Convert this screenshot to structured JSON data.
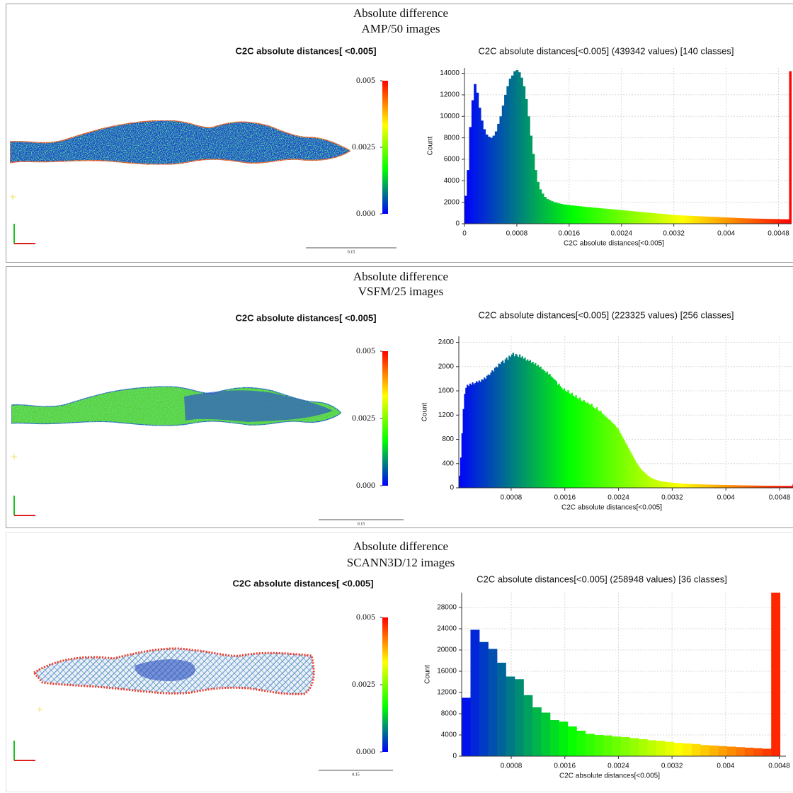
{
  "chart_data": [
    {
      "type": "histogram",
      "panel_title": "Absolute difference",
      "panel_subtitle": "AMP/50 images",
      "cloud_title": "C2C absolute distances[ <0.005]",
      "colorbar_ticks": [
        0.005,
        0.0025,
        {
          "value": 0,
          "label": "0.000"
        }
      ],
      "scale_label": "0.15",
      "title": "C2C absolute distances[<0.005] (439342 values)  [140 classes]",
      "xlabel": "C2C absolute distances[<0.005]",
      "ylabel": "Count",
      "colormap": [
        "#0000ff",
        "#00ff00",
        "#ffff00",
        "#ff0000"
      ],
      "grid": true,
      "xlim": [
        0,
        0.005
      ],
      "xticks": [
        0,
        0.0008,
        0.0016,
        0.0024,
        0.0032,
        0.004,
        0.0048
      ],
      "ylim": [
        0,
        14500
      ],
      "yticks": [
        0,
        2000,
        4000,
        6000,
        8000,
        10000,
        12000,
        14000
      ],
      "bins": [
        0.0,
        3.57e-05,
        7.14e-05,
        0.0001071,
        0.0001428,
        0.0001785,
        0.0002142,
        0.0002499,
        0.0002856,
        0.0003213,
        0.000357,
        0.0003927,
        0.0004284,
        0.0004641,
        0.0004998,
        0.0005355,
        0.0005712,
        0.0006069,
        0.0006426,
        0.0006783,
        0.000714,
        0.0007497,
        0.0007854,
        0.0008211,
        0.0008568,
        0.0008925,
        0.0009282,
        0.0009639,
        0.0009996,
        0.0010353,
        0.001071,
        0.0011067,
        0.0011424,
        0.0011781,
        0.0012138,
        0.0012495,
        0.0012852,
        0.0013209,
        0.0013566,
        0.0013923,
        0.001428,
        0.0014637,
        0.0014994,
        0.0015351,
        0.0015708,
        0.0016065,
        0.0016422,
        0.0016779,
        0.0017136,
        0.0017493,
        0.001785,
        0.0018207,
        0.0018564,
        0.0018921,
        0.0019278,
        0.0019635,
        0.0019992,
        0.0020349,
        0.0020706,
        0.0021063,
        0.002142,
        0.0021777,
        0.0022134,
        0.0022491,
        0.0022848,
        0.0023205,
        0.0023562,
        0.0023919,
        0.0024276,
        0.0024633,
        0.002499,
        0.0025347,
        0.0025704,
        0.0026061,
        0.0026418,
        0.0026775,
        0.0027132,
        0.0027489,
        0.0027846,
        0.0028203,
        0.002856,
        0.0028917,
        0.0029274,
        0.0029631,
        0.0029988,
        0.0030345,
        0.0030702,
        0.0031059,
        0.0031416,
        0.0031773,
        0.003213,
        0.0032487,
        0.0032844,
        0.0033201,
        0.0033558,
        0.0033915,
        0.0034272,
        0.0034629,
        0.0034986,
        0.0035343,
        0.00357,
        0.0036057,
        0.0036414,
        0.0036771,
        0.0037128,
        0.0037485,
        0.0037842,
        0.0038199,
        0.0038556,
        0.0038913,
        0.003927,
        0.0039627,
        0.0039984,
        0.0040341,
        0.0040698,
        0.0041055,
        0.0041412,
        0.0041769,
        0.0042126,
        0.0042483,
        0.004284,
        0.0043197,
        0.0043554,
        0.0043911,
        0.0044268,
        0.0044625,
        0.0044982,
        0.0045339,
        0.0045696,
        0.0046053,
        0.004641,
        0.0046767,
        0.0047124,
        0.0047481,
        0.0047838,
        0.0048195,
        0.0048552,
        0.0048909,
        0.0049266,
        0.0049623,
        0.004998
      ],
      "counts": [
        2600,
        5000,
        9000,
        11500,
        13000,
        12200,
        10800,
        9600,
        8800,
        8300,
        8100,
        8000,
        8200,
        8600,
        9300,
        10000,
        11000,
        12000,
        12800,
        13500,
        13800,
        14200,
        14300,
        14100,
        13600,
        12800,
        11600,
        10000,
        8200,
        6500,
        5000,
        3900,
        3200,
        2800,
        2500,
        2300,
        2200,
        2100,
        2000,
        1950,
        1900,
        1850,
        1800,
        1780,
        1750,
        1720,
        1700,
        1680,
        1650,
        1630,
        1600,
        1580,
        1560,
        1540,
        1520,
        1500,
        1480,
        1460,
        1440,
        1420,
        1400,
        1380,
        1360,
        1340,
        1320,
        1300,
        1280,
        1260,
        1240,
        1220,
        1200,
        1180,
        1160,
        1140,
        1120,
        1100,
        1080,
        1060,
        1040,
        1020,
        1000,
        980,
        960,
        940,
        920,
        900,
        880,
        860,
        840,
        820,
        800,
        790,
        780,
        770,
        760,
        750,
        740,
        730,
        720,
        710,
        700,
        690,
        680,
        670,
        660,
        650,
        640,
        630,
        620,
        610,
        600,
        590,
        580,
        570,
        560,
        550,
        540,
        530,
        520,
        510,
        500,
        495,
        490,
        485,
        480,
        475,
        470,
        465,
        460,
        455,
        450,
        445,
        440,
        435,
        430,
        425,
        420,
        415,
        410,
        14200
      ]
    },
    {
      "type": "histogram",
      "panel_title": "Absolute difference",
      "panel_subtitle": "VSFM/25 images",
      "cloud_title": "C2C absolute distances[ <0.005]",
      "colorbar_ticks": [
        0.005,
        0.0025,
        {
          "value": 0,
          "label": "0.000"
        }
      ],
      "scale_label": "0.15",
      "title": "C2C absolute distances[<0.005] (223325 values)  [256 classes]",
      "xlabel": "C2C absolute distances[<0.005]",
      "ylabel": "Count",
      "colormap": [
        "#0000ff",
        "#00ff00",
        "#ffff00",
        "#ff0000"
      ],
      "grid": true,
      "xlim": [
        2e-05,
        0.005
      ],
      "xticks": [
        0.0008,
        0.0016,
        0.0024,
        0.0032,
        0.004,
        0.0048
      ],
      "ylim": [
        0,
        2500
      ],
      "yticks": [
        0,
        400,
        800,
        1200,
        1600,
        2000,
        2400
      ],
      "bins": [
        2e-05,
        3.95e-05,
        5.9e-05,
        7.85e-05,
        9.8e-05,
        0.0001175,
        0.000137,
        0.0001565,
        0.000176,
        0.0001955,
        0.000215,
        0.0002345,
        0.000254,
        0.0002735,
        0.000293,
        0.0003125,
        0.000332,
        0.0003515,
        0.000371,
        0.0003905,
        0.00041,
        0.0004295,
        0.000449,
        0.0004685,
        0.000488,
        0.0005075,
        0.000527,
        0.0005465,
        0.000566,
        0.0005855,
        0.000605,
        0.0006245,
        0.000644,
        0.0006635,
        0.000683,
        0.0007025,
        0.000722,
        0.0007415,
        0.000761,
        0.0007805,
        0.0008,
        0.0008195,
        0.000839,
        0.0008585,
        0.000878,
        0.0008975,
        0.000917,
        0.0009365,
        0.000956,
        0.0009755,
        0.000995,
        0.0010145,
        0.001034,
        0.0010535,
        0.001073,
        0.0010925,
        0.001112,
        0.0011315,
        0.001151,
        0.0011705,
        0.00119,
        0.0012095,
        0.001229,
        0.0012485,
        0.001268,
        0.0012875,
        0.001307,
        0.0013265,
        0.001346,
        0.0013655,
        0.001385,
        0.0014045,
        0.001424,
        0.0014435,
        0.001463,
        0.0014825,
        0.001502,
        0.0015215,
        0.001541,
        0.0015605,
        0.00158,
        0.0015995,
        0.001619,
        0.0016385,
        0.001658,
        0.0016775,
        0.001697,
        0.0017165,
        0.001736,
        0.0017555,
        0.001775,
        0.0017945,
        0.001814,
        0.0018335,
        0.001853,
        0.0018725,
        0.001892,
        0.0019115,
        0.001931,
        0.0019505,
        0.00197,
        0.0019895,
        0.002009,
        0.0020285,
        0.002048,
        0.0020675,
        0.002087,
        0.0021065,
        0.002126,
        0.0021455,
        0.002165,
        0.0021845,
        0.002204,
        0.0022235,
        0.002243,
        0.0022625,
        0.002282,
        0.0023015,
        0.002321,
        0.0023405,
        0.00236,
        0.0023795,
        0.002399,
        0.0024185,
        0.002438,
        0.0024575,
        0.002477,
        0.0024965,
        0.002516,
        0.0025355,
        0.002555,
        0.0025745,
        0.002594,
        0.0026135,
        0.002633,
        0.0026525,
        0.002672,
        0.0026915,
        0.002711,
        0.0027305,
        0.00275,
        0.0027695,
        0.002789,
        0.0028085,
        0.002828,
        0.0028475,
        0.002867,
        0.0028865,
        0.002906,
        0.0029255,
        0.002945,
        0.0029645,
        0.002984,
        0.0030035,
        0.003023,
        0.0030425,
        0.003062,
        0.0030815,
        0.003101,
        0.0031205,
        0.00314,
        0.0031595,
        0.003179,
        0.0031985,
        0.003218,
        0.0032375,
        0.003257,
        0.0032765,
        0.003296,
        0.0033155,
        0.003335,
        0.0033545,
        0.003374,
        0.0033935,
        0.003413,
        0.0034325,
        0.003452,
        0.0034715,
        0.003491,
        0.0035105,
        0.00353,
        0.0035495,
        0.003569,
        0.0035885,
        0.003608,
        0.0036275,
        0.003647,
        0.0036665,
        0.003686,
        0.0037055,
        0.003725,
        0.0037445,
        0.003764,
        0.0037835,
        0.003803,
        0.0038225,
        0.003842,
        0.0038615,
        0.003881,
        0.0039005,
        0.00392,
        0.0039395,
        0.003959,
        0.0039785,
        0.003998,
        0.0040175,
        0.004037,
        0.0040565,
        0.004076,
        0.0040955,
        0.004115,
        0.0041345,
        0.004154,
        0.0041735,
        0.004193,
        0.0042125,
        0.004232,
        0.0042515,
        0.004271,
        0.0042905,
        0.00431,
        0.0043295,
        0.004349,
        0.0043685,
        0.004388,
        0.0044075,
        0.004427,
        0.0044465,
        0.004466,
        0.0044855,
        0.004505,
        0.0045245,
        0.004544,
        0.0045635,
        0.004583,
        0.0046025,
        0.004622,
        0.0046415,
        0.004661,
        0.0046805,
        0.0047,
        0.0047195,
        0.004739,
        0.0047585,
        0.004778,
        0.0047975,
        0.004817,
        0.0048365,
        0.004856,
        0.0048755,
        0.004895,
        0.0049145,
        0.004934,
        0.0049535,
        0.004973,
        0.0049925,
        0.005012
      ],
      "counts": [
        200,
        500,
        900,
        1300,
        1550,
        1650,
        1700,
        1680,
        1720,
        1700,
        1740,
        1710,
        1730,
        1760,
        1740,
        1770,
        1750,
        1790,
        1780,
        1820,
        1800,
        1850,
        1870,
        1860,
        1900,
        1940,
        1920,
        1980,
        2000,
        1990,
        2050,
        2040,
        2080,
        2100,
        2060,
        2120,
        2150,
        2110,
        2180,
        2160,
        2200,
        2230,
        2170,
        2210,
        2190,
        2160,
        2200,
        2150,
        2170,
        2130,
        2150,
        2100,
        2120,
        2090,
        2110,
        2060,
        2080,
        2040,
        2060,
        2010,
        2030,
        1990,
        2000,
        1960,
        1950,
        1930,
        1900,
        1920,
        1870,
        1880,
        1840,
        1820,
        1800,
        1780,
        1760,
        1700,
        1720,
        1680,
        1650,
        1620,
        1640,
        1600,
        1580,
        1610,
        1560,
        1540,
        1570,
        1520,
        1500,
        1530,
        1480,
        1460,
        1490,
        1440,
        1430,
        1450,
        1420,
        1400,
        1410,
        1380,
        1360,
        1390,
        1340,
        1320,
        1300,
        1330,
        1280,
        1260,
        1270,
        1230,
        1210,
        1190,
        1170,
        1150,
        1130,
        1120,
        1090,
        1070,
        1050,
        1030,
        1000,
        980,
        940,
        900,
        860,
        820,
        780,
        740,
        700,
        660,
        620,
        580,
        540,
        500,
        460,
        420,
        390,
        360,
        330,
        300,
        280,
        260,
        240,
        220,
        200,
        185,
        170,
        160,
        150,
        140,
        130,
        125,
        120,
        115,
        110,
        105,
        100,
        98,
        95,
        92,
        90,
        88,
        85,
        83,
        80,
        78,
        76,
        75,
        73,
        72,
        70,
        69,
        68,
        67,
        66,
        65,
        64,
        63,
        62,
        61,
        60,
        60,
        59,
        58,
        57,
        57,
        56,
        55,
        55,
        54,
        53,
        53,
        52,
        52,
        51,
        50,
        50,
        49,
        49,
        48,
        48,
        47,
        47,
        46,
        46,
        45,
        45,
        44,
        44,
        44,
        43,
        43,
        42,
        42,
        42,
        41,
        41,
        40,
        40,
        40,
        39,
        39,
        39,
        38,
        38,
        38,
        37,
        37,
        37,
        36,
        36,
        36,
        35,
        35,
        35,
        35,
        34,
        34,
        34,
        34,
        33,
        33,
        33,
        33,
        32,
        32,
        32,
        32,
        31,
        31,
        31,
        31,
        30,
        30,
        30,
        60
      ]
    },
    {
      "type": "histogram",
      "panel_title": "Absolute difference",
      "panel_subtitle": "SCANN3D/12 images",
      "cloud_title": "C2C absolute distances[ <0.005]",
      "colorbar_ticks": [
        0.005,
        0.0025,
        {
          "value": 0,
          "label": "0.000"
        }
      ],
      "scale_label": "0.15",
      "title": "C2C absolute distances[<0.005] (258948 values)  [36 classes]",
      "xlabel": "C2C absolute distances[<0.005]",
      "ylabel": "Count",
      "colormap": [
        "#0000ff",
        "#00ff00",
        "#ffff00",
        "#ff0000"
      ],
      "grid": true,
      "xlim": [
        6e-05,
        0.0049
      ],
      "xticks": [
        0.0008,
        0.0016,
        0.0024,
        0.0032,
        0.004,
        0.0048
      ],
      "ylim": [
        0,
        30800
      ],
      "yticks": [
        0,
        4000,
        8000,
        12000,
        16000,
        20000,
        24000,
        28000
      ],
      "bins": [
        6e-05,
        0.000192,
        0.000324,
        0.000456,
        0.000588,
        0.00072,
        0.000852,
        0.000984,
        0.001116,
        0.001248,
        0.00138,
        0.001512,
        0.001644,
        0.001776,
        0.001908,
        0.00204,
        0.002172,
        0.002304,
        0.002436,
        0.002568,
        0.0027,
        0.002832,
        0.002964,
        0.003096,
        0.003228,
        0.00336,
        0.003492,
        0.003624,
        0.003756,
        0.003888,
        0.00402,
        0.004152,
        0.004284,
        0.004416,
        0.004548,
        0.00468,
        0.004812
      ],
      "counts": [
        11000,
        23800,
        21500,
        20200,
        17600,
        15000,
        14500,
        11500,
        9200,
        8200,
        6800,
        6500,
        5600,
        4800,
        4200,
        4000,
        3900,
        3700,
        3600,
        3400,
        3200,
        3000,
        2900,
        2700,
        2500,
        2400,
        2300,
        2100,
        2000,
        1900,
        1800,
        1700,
        1600,
        1500,
        1400,
        30800
      ]
    }
  ]
}
